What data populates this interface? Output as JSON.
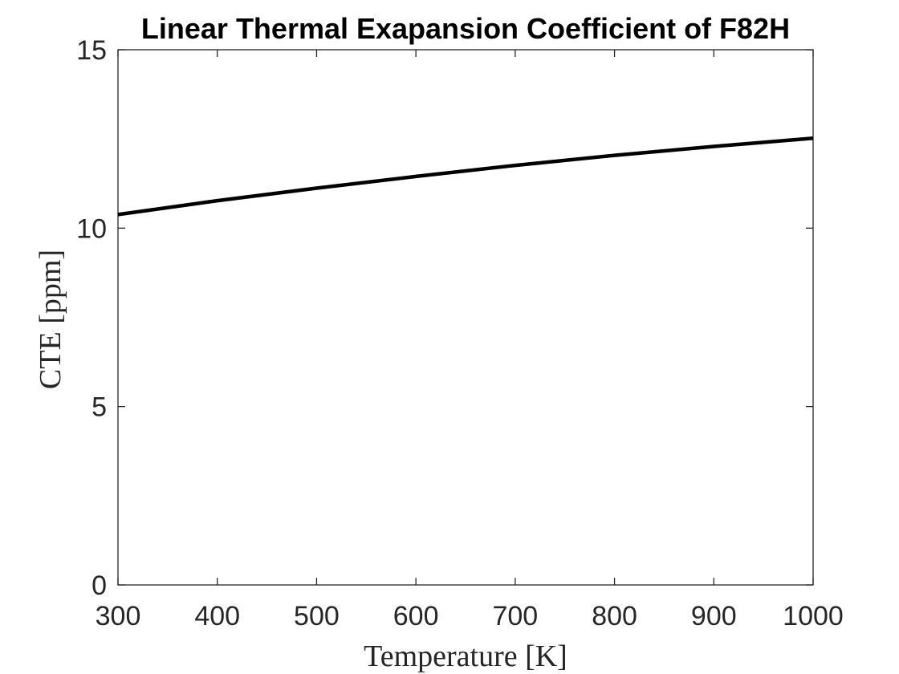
{
  "chart_data": {
    "type": "line",
    "title": "Linear Thermal Exapansion Coefficient of F82H",
    "xlabel": "Temperature [K]",
    "ylabel": "CTE [ppm]",
    "xlim": [
      300,
      1000
    ],
    "ylim": [
      0,
      15
    ],
    "xticks": [
      300,
      400,
      500,
      600,
      700,
      800,
      900,
      1000
    ],
    "yticks": [
      0,
      5,
      10,
      15
    ],
    "xtick_labels": [
      "300",
      "400",
      "500",
      "600",
      "700",
      "800",
      "900",
      "1000"
    ],
    "ytick_labels": [
      "0",
      "5",
      "10",
      "15"
    ],
    "grid": false,
    "line_color": "#000000",
    "series": [
      {
        "x": [
          300,
          400,
          500,
          600,
          700,
          800,
          900,
          1000
        ],
        "y": [
          10.38,
          10.77,
          11.12,
          11.45,
          11.76,
          12.04,
          12.29,
          12.52
        ]
      }
    ]
  }
}
